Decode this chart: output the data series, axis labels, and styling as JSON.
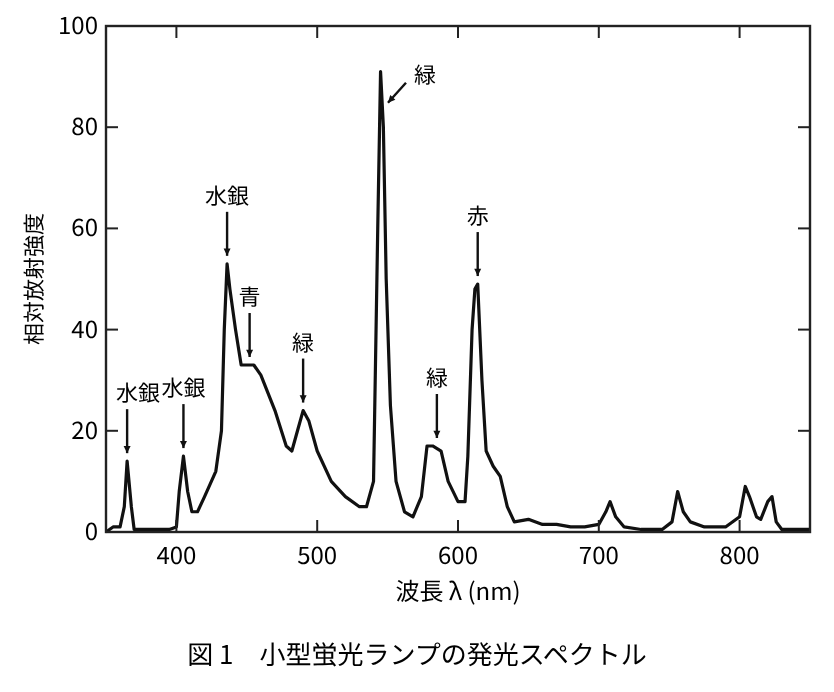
{
  "chart_data": {
    "type": "line",
    "title": "図 1　小型蛍光ランプの発光スペクトル",
    "xlabel": "波長 λ (nm)",
    "ylabel": "相対放射強度",
    "xlim": [
      350,
      850
    ],
    "xticks": [
      400,
      500,
      600,
      700,
      800
    ],
    "ylim": [
      0,
      100
    ],
    "yticks": [
      0,
      20,
      40,
      60,
      80,
      100
    ],
    "grid": false,
    "marker": "none",
    "line_style": "solid",
    "series": [
      {
        "color": "#111111",
        "x": [
          350,
          355,
          360,
          363,
          365,
          368,
          370,
          380,
          395,
          400,
          402,
          405,
          408,
          411,
          415,
          420,
          428,
          432,
          434,
          436,
          438,
          442,
          446,
          450,
          455,
          460,
          470,
          478,
          482,
          486,
          490,
          494,
          500,
          510,
          520,
          530,
          535,
          540,
          543,
          545,
          547,
          549,
          552,
          556,
          562,
          568,
          574,
          578,
          582,
          588,
          593,
          600,
          605,
          607,
          610,
          612,
          614,
          617,
          620,
          625,
          630,
          635,
          640,
          650,
          660,
          670,
          680,
          690,
          700,
          705,
          708,
          712,
          718,
          730,
          745,
          752,
          756,
          760,
          765,
          775,
          790,
          800,
          804,
          807,
          812,
          815,
          820,
          823,
          826,
          830,
          840,
          850
        ],
        "values": [
          0,
          1,
          1,
          5,
          14,
          5,
          0.5,
          0.5,
          0.5,
          1,
          8,
          15,
          8,
          4,
          4,
          7,
          12,
          20,
          40,
          53,
          48,
          40,
          33,
          33,
          33,
          31,
          24,
          17,
          16,
          20,
          24,
          22,
          16,
          10,
          7,
          5,
          5,
          10,
          60,
          91,
          80,
          50,
          25,
          10,
          4,
          3,
          7,
          17,
          17,
          16,
          10,
          6,
          6,
          15,
          40,
          48,
          49,
          30,
          16,
          13,
          11,
          5,
          2,
          2.5,
          1.5,
          1.5,
          1,
          1,
          1.5,
          4,
          6,
          3,
          1,
          0.5,
          0.5,
          2,
          8,
          4,
          2,
          1,
          1,
          3,
          9,
          7,
          3,
          2.5,
          6,
          7,
          2,
          0.5,
          0.5,
          0.5
        ]
      }
    ],
    "annotations": [
      {
        "text": "水銀",
        "x": 365,
        "y": 14
      },
      {
        "text": "水銀",
        "x": 405,
        "y": 15
      },
      {
        "text": "水銀",
        "x": 436,
        "y": 53
      },
      {
        "text": "青",
        "x": 452,
        "y": 33
      },
      {
        "text": "緑",
        "x": 490,
        "y": 24
      },
      {
        "text": "緑",
        "x": 546,
        "y": 88
      },
      {
        "text": "緑",
        "x": 585,
        "y": 17
      },
      {
        "text": "赤",
        "x": 614,
        "y": 49
      }
    ]
  }
}
